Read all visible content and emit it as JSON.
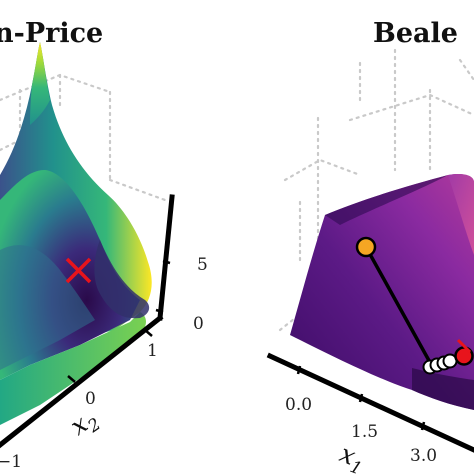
{
  "chart_data": [
    {
      "type": "surface",
      "title": "n-Price",
      "xlabel": "",
      "ylabel": "x2",
      "zlabel": "",
      "y_ticks": [
        "−1",
        "0",
        "1"
      ],
      "z_ticks": [
        "0",
        "5"
      ],
      "surface_colormap": "viridis",
      "marker": {
        "shape": "x",
        "color": "#e8141c"
      },
      "grid": true
    },
    {
      "type": "surface",
      "title": "Beale",
      "xlabel": "x1",
      "ylabel": "",
      "zlabel": "",
      "x_ticks": [
        "0.0",
        "1.5",
        "3.0"
      ],
      "surface_colormap": "plasma",
      "grid": true,
      "trajectory": {
        "start_color": "#f5a623",
        "end_color": "#e8141c",
        "intermediate_color": "#ffffff",
        "line_color": "#000000"
      }
    }
  ]
}
